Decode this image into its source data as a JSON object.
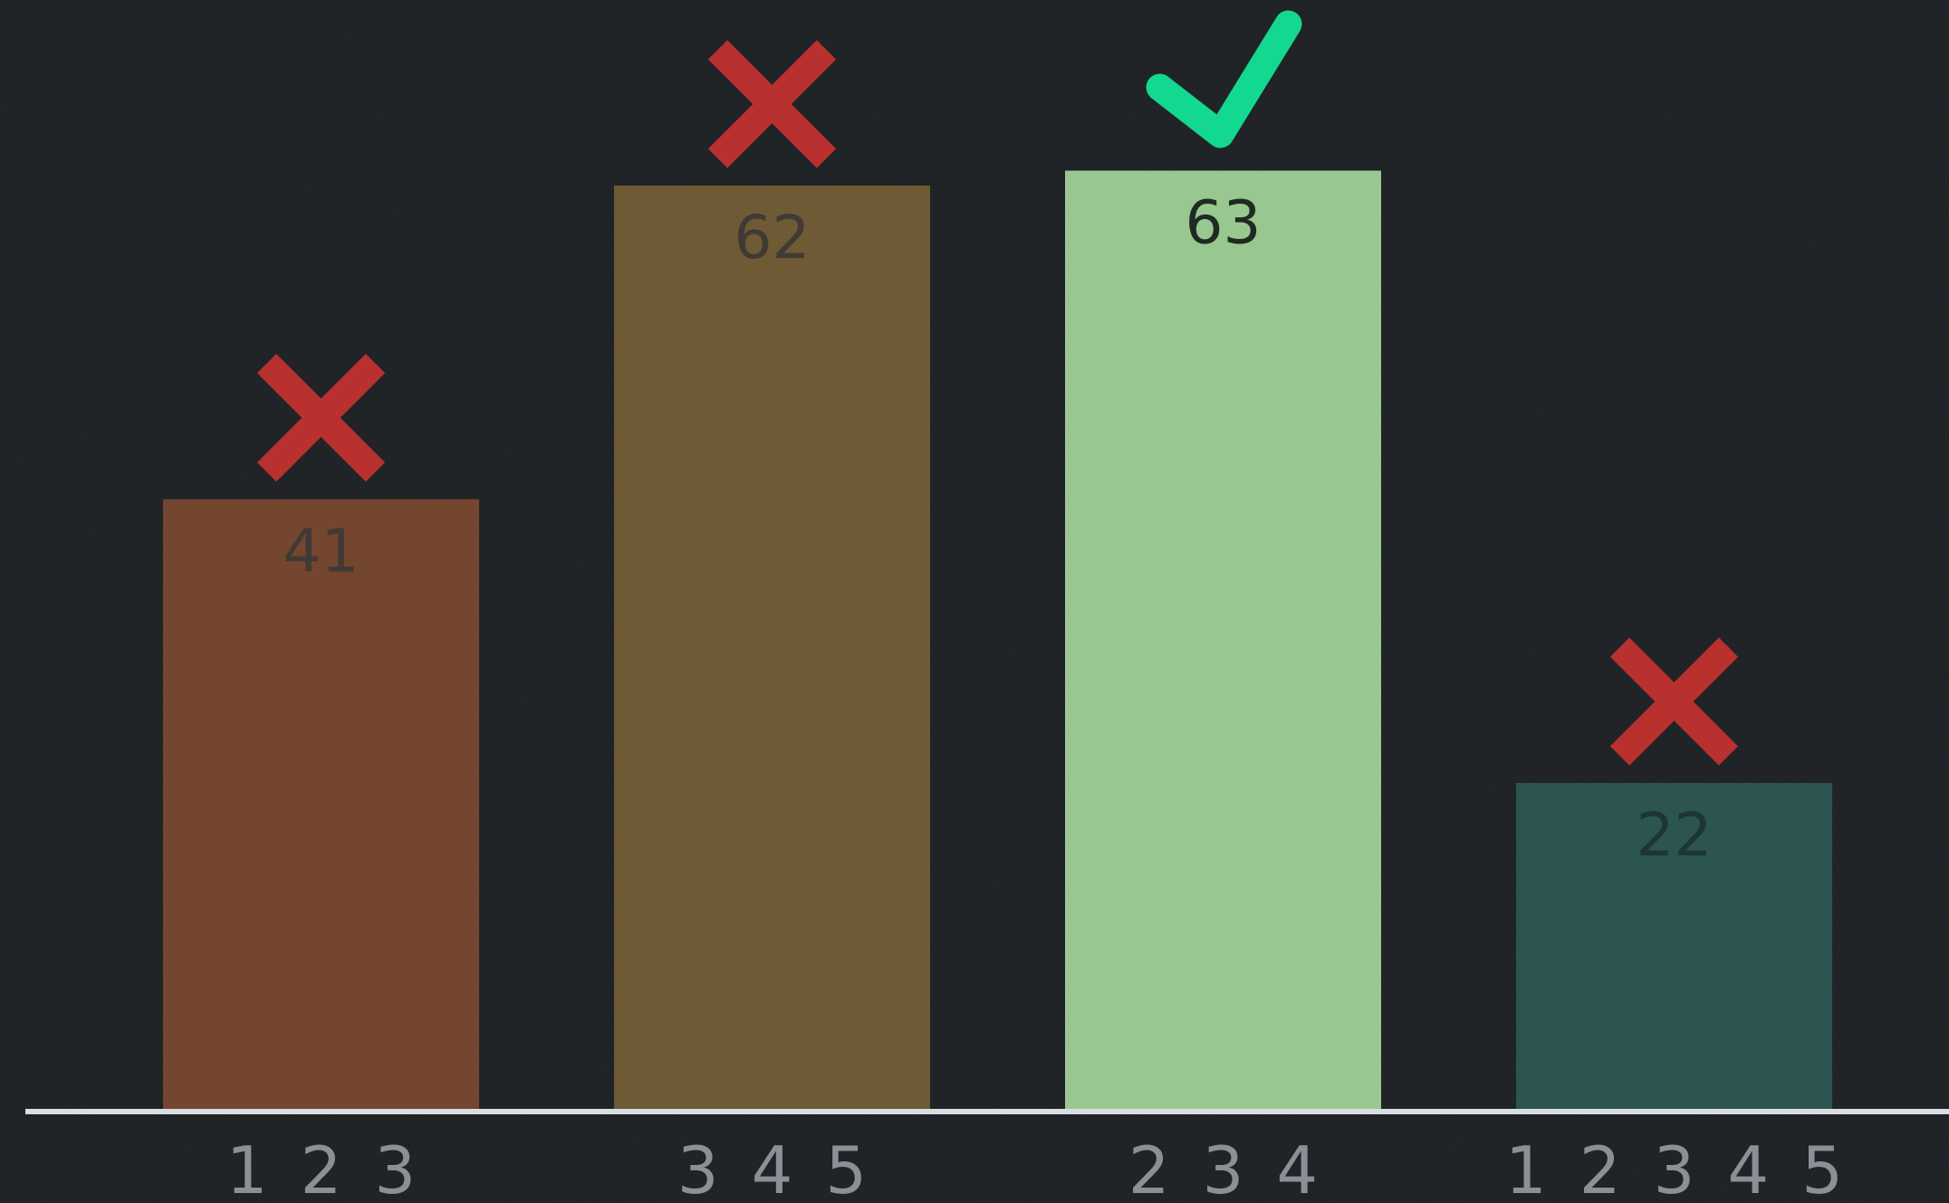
{
  "chart_data": {
    "type": "bar",
    "categories": [
      "1 2 3",
      "3 4 5",
      "2 3 4",
      "1 2 3 4 5"
    ],
    "values": [
      41,
      62,
      63,
      22
    ],
    "value_labels": [
      "41",
      "62",
      "63",
      "22"
    ],
    "markers": [
      "cross",
      "cross",
      "check",
      "cross"
    ],
    "ylim": [
      0,
      70
    ],
    "grid": false,
    "bar_colors": [
      "#74452f",
      "#6e5a34",
      "#98c790",
      "#2c5552"
    ],
    "value_label_colors": [
      "#3f3a35",
      "#3f3a35",
      "#1f2a22",
      "#1d3533"
    ],
    "marker_colors": {
      "cross": "#b8312f",
      "check": "#13d890"
    },
    "background_color": "#15181c",
    "axis_color": "#d9dde2",
    "tick_color": "#8c9096"
  }
}
